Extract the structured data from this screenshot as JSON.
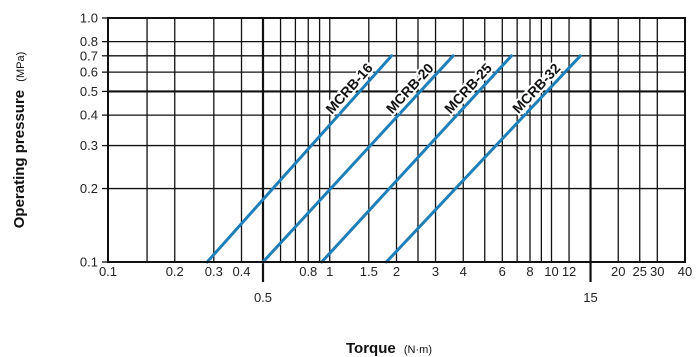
{
  "chart_data": {
    "type": "line",
    "xlabel": "Torque",
    "xunit": "(N·m)",
    "ylabel": "Operating pressure",
    "yunit": "(MPa)",
    "xscale": "log",
    "yscale": "log",
    "xlim": [
      0.1,
      40
    ],
    "ylim": [
      0.1,
      1.0
    ],
    "grid": true,
    "line_color": "#1f7fb8",
    "x_ticks_row1": [
      {
        "v": 0.1,
        "label": "0.1"
      },
      {
        "v": 0.2,
        "label": "0.2"
      },
      {
        "v": 0.3,
        "label": "0.3"
      },
      {
        "v": 0.4,
        "label": "0.4"
      },
      {
        "v": 0.8,
        "label": "0.8"
      },
      {
        "v": 1,
        "label": "1"
      },
      {
        "v": 1.5,
        "label": "1.5"
      },
      {
        "v": 2,
        "label": "2"
      },
      {
        "v": 3,
        "label": "3"
      },
      {
        "v": 4,
        "label": "4"
      },
      {
        "v": 6,
        "label": "6"
      },
      {
        "v": 8,
        "label": "8"
      },
      {
        "v": 10,
        "label": "10"
      },
      {
        "v": 12,
        "label": "12"
      },
      {
        "v": 20,
        "label": "20"
      },
      {
        "v": 25,
        "label": "25"
      },
      {
        "v": 30,
        "label": "30"
      },
      {
        "v": 40,
        "label": "40"
      }
    ],
    "x_ticks_row2": [
      {
        "v": 0.5,
        "label": "0.5"
      },
      {
        "v": 15,
        "label": "15"
      }
    ],
    "x_gridlines": [
      0.1,
      0.15,
      0.2,
      0.3,
      0.4,
      0.5,
      0.6,
      0.7,
      0.8,
      0.9,
      1,
      1.5,
      2,
      2.5,
      3,
      4,
      5,
      6,
      7,
      8,
      9,
      10,
      12,
      15,
      20,
      25,
      30,
      40
    ],
    "x_emphasis": [
      0.5,
      15
    ],
    "y_ticks": [
      {
        "v": 0.1,
        "label": "0.1"
      },
      {
        "v": 0.2,
        "label": "0.2"
      },
      {
        "v": 0.3,
        "label": "0.3"
      },
      {
        "v": 0.4,
        "label": "0.4"
      },
      {
        "v": 0.5,
        "label": "0.5"
      },
      {
        "v": 0.6,
        "label": "0.6"
      },
      {
        "v": 0.7,
        "label": "0.7"
      },
      {
        "v": 0.8,
        "label": "0.8"
      },
      {
        "v": 1.0,
        "label": "1.0"
      }
    ],
    "y_emphasis": [
      0.5
    ],
    "series": [
      {
        "name": "MCRB-16",
        "x": [
          0.28,
          1.9
        ],
        "y": [
          0.1,
          0.7
        ]
      },
      {
        "name": "MCRB-20",
        "x": [
          0.5,
          3.6
        ],
        "y": [
          0.1,
          0.7
        ]
      },
      {
        "name": "MCRB-25",
        "x": [
          0.92,
          6.6
        ],
        "y": [
          0.1,
          0.7
        ]
      },
      {
        "name": "MCRB-32",
        "x": [
          1.8,
          13.5
        ],
        "y": [
          0.1,
          0.7
        ]
      }
    ]
  }
}
